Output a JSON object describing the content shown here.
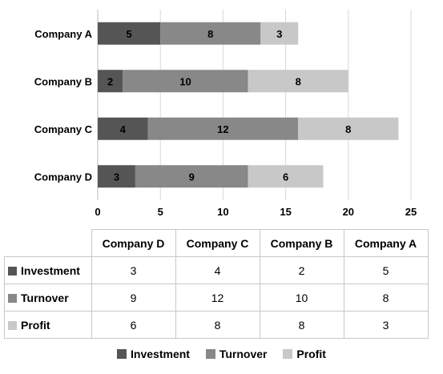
{
  "chart_data": {
    "type": "bar",
    "orientation": "horizontal",
    "stacked": true,
    "categories": [
      "Company A",
      "Company B",
      "Company C",
      "Company D"
    ],
    "series": [
      {
        "name": "Investment",
        "values": [
          5,
          2,
          4,
          3
        ],
        "color": "#555555"
      },
      {
        "name": "Turnover",
        "values": [
          8,
          10,
          12,
          9
        ],
        "color": "#888888"
      },
      {
        "name": "Profit",
        "values": [
          3,
          8,
          8,
          6
        ],
        "color": "#c8c8c8"
      }
    ],
    "xlim": [
      0,
      25
    ],
    "xticks": [
      "0",
      "5",
      "10",
      "15",
      "20",
      "25"
    ],
    "grid": true,
    "legend_position": "bottom"
  },
  "table": {
    "columns": [
      "Company D",
      "Company C",
      "Company B",
      "Company A"
    ],
    "rows": [
      {
        "label": "Investment",
        "values": [
          "3",
          "4",
          "2",
          "5"
        ],
        "color": "#555555"
      },
      {
        "label": "Turnover",
        "values": [
          "9",
          "12",
          "10",
          "8"
        ],
        "color": "#888888"
      },
      {
        "label": "Profit",
        "values": [
          "6",
          "8",
          "8",
          "3"
        ],
        "color": "#c8c8c8"
      }
    ]
  },
  "legend": [
    {
      "label": "Investment",
      "color": "#555555"
    },
    {
      "label": "Turnover",
      "color": "#888888"
    },
    {
      "label": "Profit",
      "color": "#c8c8c8"
    }
  ]
}
